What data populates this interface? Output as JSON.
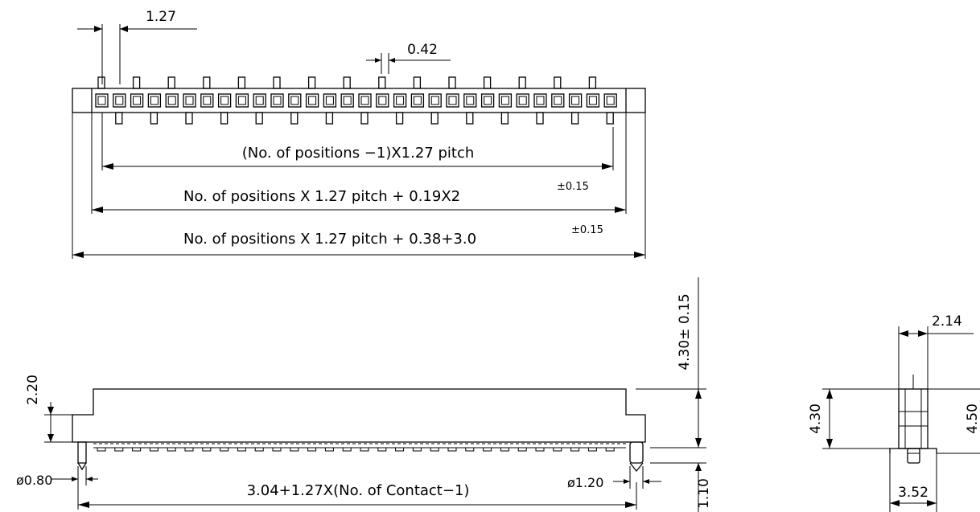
{
  "top_view": {
    "pitch_dim": "1.27",
    "pin_width_dim": "0.42",
    "formula_pitch": "(No. of positions −1)X1.27 pitch",
    "formula_mid": "No. of positions X 1.27 pitch + 0.19X2",
    "formula_mid_tol": "±0.15",
    "formula_overall": "No. of positions X 1.27 pitch + 0.38+3.0",
    "formula_overall_tol": "±0.15",
    "contact_count": 30
  },
  "front_view": {
    "height_total": "4.30± 0.15",
    "flange_height": "2.20",
    "pin_dia_left": "ø0.80",
    "pin_dia_right": "ø1.20",
    "pin_length": "1.10",
    "span_formula": "3.04+1.27X(No. of Contact−1)"
  },
  "side_view": {
    "top_width": "2.14",
    "body_height": "4.30",
    "total_height": "4.50",
    "foot_width": "3.52"
  }
}
